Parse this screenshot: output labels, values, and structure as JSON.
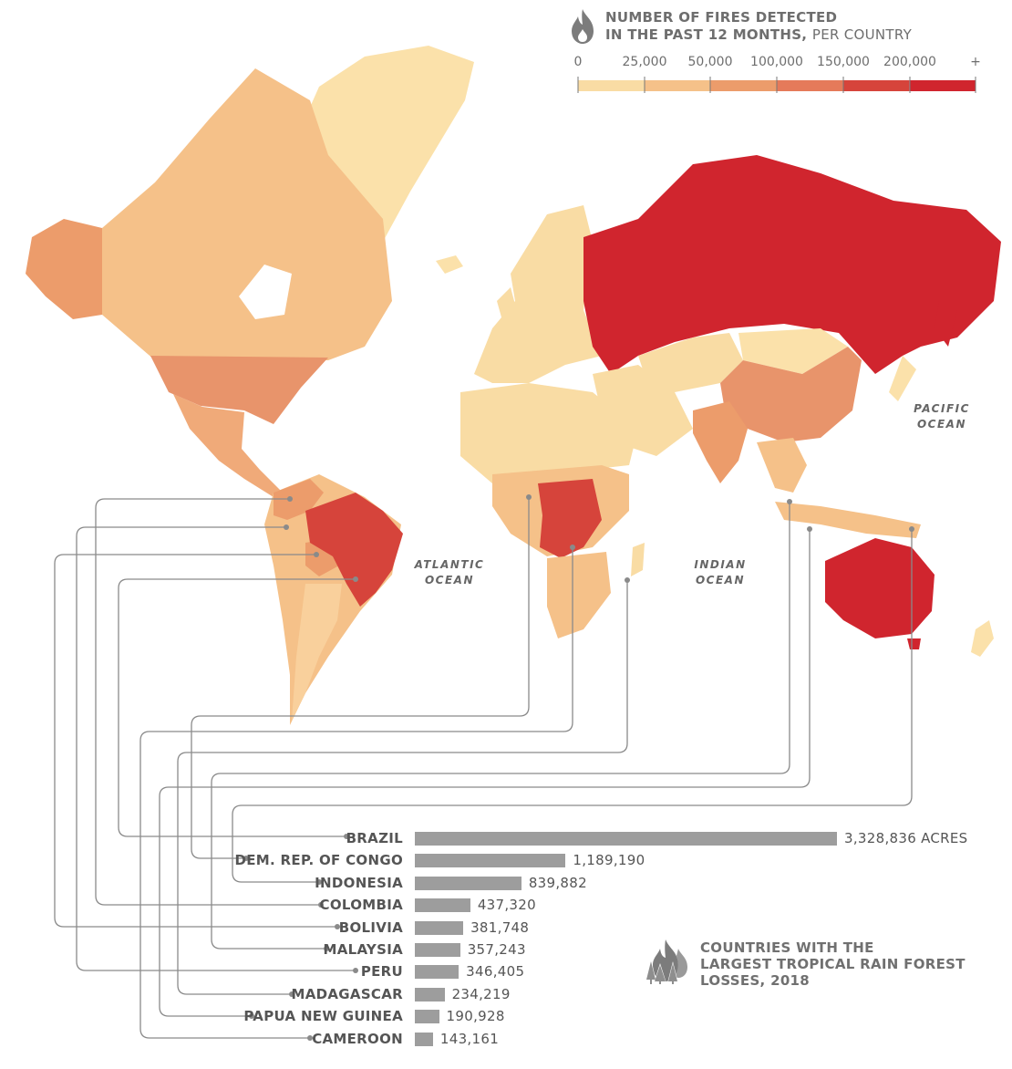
{
  "legend": {
    "title_line1": "NUMBER OF FIRES DETECTED",
    "title_line2_bold": "IN THE PAST 12 MONTHS,",
    "title_line2_regular": "PER COUNTRY",
    "icon": "flame-icon",
    "ticks": [
      "0",
      "25,000",
      "50,000",
      "100,000",
      "150,000",
      "200,000",
      "+"
    ],
    "colors": [
      "#f9dca4",
      "#f5c189",
      "#ec9c6b",
      "#e57a5a",
      "#d6443b",
      "#d0252e"
    ]
  },
  "oceans": {
    "atlantic": [
      "ATLANTIC",
      "OCEAN"
    ],
    "indian": [
      "INDIAN",
      "OCEAN"
    ],
    "pacific": [
      "PACIFIC",
      "OCEAN"
    ]
  },
  "bars_title": {
    "line1": "COUNTRIES WITH THE",
    "line2": "LARGEST TROPICAL RAIN FOREST",
    "line3": "LOSSES, 2018",
    "icon": "forest-fire-icon"
  },
  "chart_data": {
    "type": "bar",
    "orientation": "horizontal",
    "title": "COUNTRIES WITH THE LARGEST TROPICAL RAIN FOREST LOSSES, 2018",
    "categories": [
      "BRAZIL",
      "DEM. REP. OF CONGO",
      "INDONESIA",
      "COLOMBIA",
      "BOLIVIA",
      "MALAYSIA",
      "PERU",
      "MADAGASCAR",
      "PAPUA NEW GUINEA",
      "CAMEROON"
    ],
    "values": [
      3328836,
      1189190,
      839882,
      437320,
      381748,
      357243,
      346405,
      234219,
      190928,
      143161
    ],
    "value_labels": [
      "3,328,836 ACRES",
      "1,189,190",
      "839,882",
      "437,320",
      "381,748",
      "357,243",
      "346,405",
      "234,219",
      "190,928",
      "143,161"
    ],
    "bar_color": "#9d9d9d"
  }
}
